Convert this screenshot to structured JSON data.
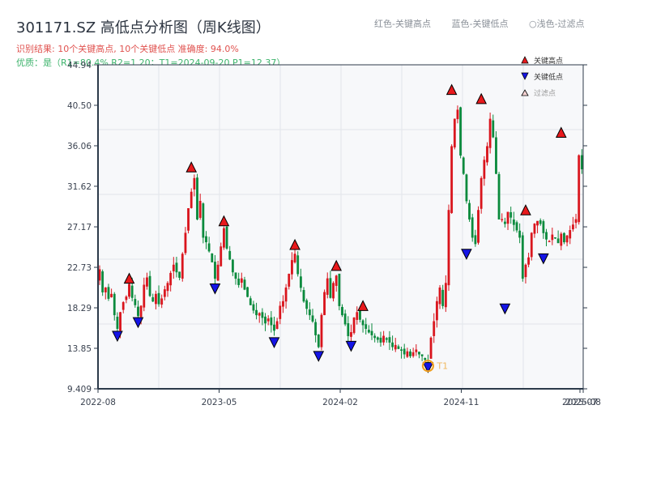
{
  "header": {
    "title": "301171.SZ 高低点分析图（周K线图）",
    "result_line": "识别结果: 10个关键高点, 10个关键低点   准确度: 94.0%",
    "quality_line": "优质：是（R1=80.4%  R2=1.20；T1=2024-09-20 P1=12.37）"
  },
  "top_legend": {
    "red": "红色-关键高点",
    "blue": "蓝色-关键低点",
    "light": "○浅色-过滤点"
  },
  "legend": {
    "items": [
      {
        "label": "关键高点",
        "marker": "triangle-up",
        "color": "#e8191c"
      },
      {
        "label": "关键低点",
        "marker": "triangle-down",
        "color": "#1414e6"
      },
      {
        "label": "过滤点",
        "marker": "triangle-up",
        "color": "#f7d4d4"
      }
    ]
  },
  "colors": {
    "up": "#d9141c",
    "down": "#0a8a3c",
    "high_marker": "#e8191c",
    "low_marker": "#1414e6",
    "t1_circle": "#f0a020",
    "grid": "#e2e5ea",
    "plot_bg": "#f7f8fa",
    "axis": "#2c3a4a"
  },
  "chart_data": {
    "type": "candlestick",
    "title": "301171.SZ 高低点分析图（周K线图）",
    "xlabel": "",
    "ylabel": "",
    "ylim": [
      9.409,
      44.94
    ],
    "yticks": [
      44.94,
      40.5,
      36.06,
      31.62,
      27.17,
      22.73,
      18.29,
      13.85,
      9.409
    ],
    "ytick_labels": [
      "44.94",
      "40.50",
      "36.06",
      "31.62",
      "27.17",
      "22.73",
      "18.29",
      "13.85",
      "9.409"
    ],
    "xticks": [
      {
        "label": "2022-08",
        "pos": 0.0
      },
      {
        "label": "2023-05",
        "pos": 0.2496
      },
      {
        "label": "2024-02",
        "pos": 0.4992
      },
      {
        "label": "2024-11",
        "pos": 0.7487
      },
      {
        "label": "2025-07",
        "pos": 0.9933
      },
      {
        "label": "2025-08",
        "pos": 1.0
      }
    ],
    "grid": true,
    "legend_position": "upper right",
    "annotations": [
      {
        "text": "T1",
        "date": "2024-09-20",
        "price": 12.37
      }
    ],
    "key_highs": [
      {
        "idx": 10,
        "price": 20.9
      },
      {
        "idx": 31,
        "price": 33.1
      },
      {
        "idx": 42,
        "price": 27.2
      },
      {
        "idx": 66,
        "price": 24.6
      },
      {
        "idx": 80,
        "price": 22.3
      },
      {
        "idx": 89,
        "price": 17.9
      },
      {
        "idx": 119,
        "price": 41.6
      },
      {
        "idx": 129,
        "price": 40.6
      },
      {
        "idx": 144,
        "price": 28.4
      },
      {
        "idx": 156,
        "price": 36.9
      }
    ],
    "key_lows": [
      {
        "idx": 6,
        "price": 15.8
      },
      {
        "idx": 13,
        "price": 17.3
      },
      {
        "idx": 39,
        "price": 21.0
      },
      {
        "idx": 59,
        "price": 15.1
      },
      {
        "idx": 74,
        "price": 13.6
      },
      {
        "idx": 85,
        "price": 14.7
      },
      {
        "idx": 111,
        "price": 12.37
      },
      {
        "idx": 124,
        "price": 24.8
      },
      {
        "idx": 137,
        "price": 18.8
      },
      {
        "idx": 150,
        "price": 24.3
      }
    ],
    "ohlc_closes": [
      22.5,
      20.0,
      20.5,
      19.3,
      19.8,
      17.5,
      16.0,
      17.8,
      18.9,
      19.5,
      20.9,
      19.4,
      18.6,
      17.4,
      18.5,
      20.8,
      21.6,
      19.6,
      19.0,
      19.8,
      18.7,
      19.3,
      20.3,
      21.0,
      22.1,
      23.0,
      22.2,
      21.6,
      24.2,
      26.5,
      29.2,
      31.0,
      32.5,
      28.0,
      30.0,
      26.0,
      25.5,
      24.5,
      23.3,
      21.5,
      23.0,
      25.0,
      27.0,
      24.8,
      23.6,
      22.2,
      21.5,
      20.8,
      21.5,
      20.3,
      19.5,
      18.6,
      18.0,
      17.5,
      17.7,
      17.2,
      16.6,
      17.1,
      16.4,
      15.8,
      16.8,
      18.5,
      19.0,
      20.5,
      22.0,
      23.5,
      24.2,
      22.0,
      20.5,
      19.0,
      18.2,
      17.5,
      16.8,
      15.3,
      14.0,
      17.5,
      20.0,
      21.5,
      19.4,
      21.0,
      21.8,
      18.5,
      17.5,
      16.5,
      15.2,
      15.6,
      17.2,
      17.8,
      17.0,
      16.4,
      16.0,
      15.6,
      15.3,
      15.0,
      14.8,
      14.5,
      15.2,
      14.8,
      14.5,
      14.0,
      14.2,
      13.8,
      13.6,
      13.2,
      13.5,
      13.0,
      13.4,
      13.7,
      13.2,
      13.0,
      12.6,
      12.5,
      15.0,
      16.8,
      19.0,
      20.5,
      18.5,
      21.0,
      29.0,
      36.0,
      39.0,
      40.0,
      35.0,
      33.0,
      30.0,
      28.0,
      26.0,
      25.3,
      29.0,
      32.5,
      34.5,
      36.0,
      39.0,
      37.0,
      33.0,
      28.0,
      28.0,
      27.5,
      28.8,
      28.2,
      27.4,
      26.8,
      26.0,
      21.5,
      23.0,
      23.8,
      26.5,
      27.5,
      27.8,
      27.5,
      26.5,
      25.8,
      25.6,
      26.3,
      26.0,
      25.4,
      26.4,
      25.5,
      26.2,
      26.8,
      27.4,
      28.0,
      35.0,
      33.5
    ]
  }
}
